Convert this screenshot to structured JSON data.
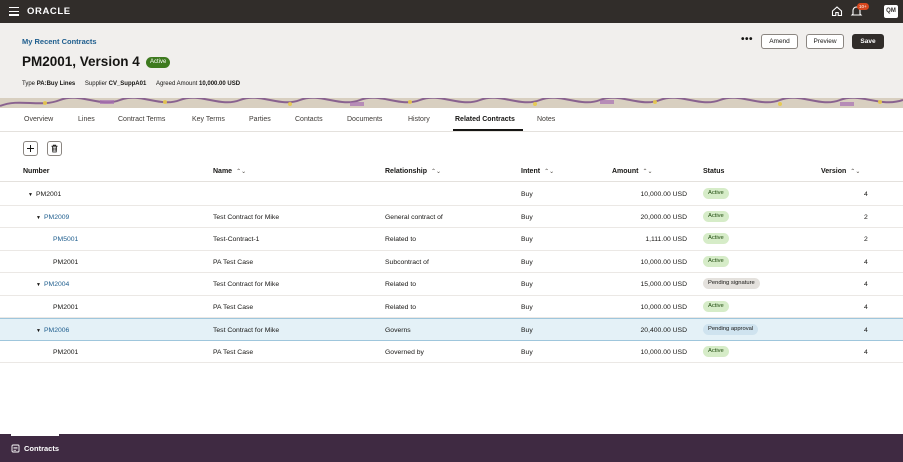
{
  "topbar": {
    "logo": "ORACLE",
    "notification_count": "10+",
    "user_initials": "QM"
  },
  "header": {
    "breadcrumb": "My Recent Contracts",
    "title": "PM2001, Version 4",
    "status": "Active",
    "meta": {
      "type_label": "Type",
      "type_value": "PA:Buy Lines",
      "supplier_label": "Supplier",
      "supplier_value": "CV_SuppA01",
      "amount_label": "Agreed Amount",
      "amount_value": "10,000.00 USD"
    },
    "actions": {
      "more": "•••",
      "amend": "Amend",
      "preview": "Preview",
      "save": "Save"
    }
  },
  "tabs": [
    {
      "label": "Overview"
    },
    {
      "label": "Lines"
    },
    {
      "label": "Contract Terms"
    },
    {
      "label": "Key Terms"
    },
    {
      "label": "Parties"
    },
    {
      "label": "Contacts"
    },
    {
      "label": "Documents"
    },
    {
      "label": "History"
    },
    {
      "label": "Related Contracts",
      "active": true
    },
    {
      "label": "Notes"
    }
  ],
  "table": {
    "columns": {
      "number": "Number",
      "name": "Name",
      "relationship": "Relationship",
      "intent": "Intent",
      "amount": "Amount",
      "status": "Status",
      "version": "Version"
    },
    "rows": [
      {
        "number": "PM2001",
        "name": "",
        "relationship": "",
        "intent": "Buy",
        "amount": "10,000.00 USD",
        "status": "Active",
        "version": "4"
      },
      {
        "number": "PM2009",
        "name": "Test Contract for Mike",
        "relationship": "General contract of",
        "intent": "Buy",
        "amount": "20,000.00 USD",
        "status": "Active",
        "version": "2"
      },
      {
        "number": "PM5001",
        "name": "Test-Contract-1",
        "relationship": "Related to",
        "intent": "Buy",
        "amount": "1,111.00 USD",
        "status": "Active",
        "version": "2"
      },
      {
        "number": "PM2001",
        "name": "PA Test Case",
        "relationship": "Subcontract of",
        "intent": "Buy",
        "amount": "10,000.00 USD",
        "status": "Active",
        "version": "4"
      },
      {
        "number": "PM2004",
        "name": "Test Contract for Mike",
        "relationship": "Related to",
        "intent": "Buy",
        "amount": "15,000.00 USD",
        "status": "Pending signature",
        "version": "4"
      },
      {
        "number": "PM2001",
        "name": "PA Test Case",
        "relationship": "Related to",
        "intent": "Buy",
        "amount": "10,000.00 USD",
        "status": "Active",
        "version": "4"
      },
      {
        "number": "PM2006",
        "name": "Test Contract for Mike",
        "relationship": "Governs",
        "intent": "Buy",
        "amount": "20,400.00 USD",
        "status": "Pending approval",
        "version": "4"
      },
      {
        "number": "PM2001",
        "name": "PA Test Case",
        "relationship": "Governed by",
        "intent": "Buy",
        "amount": "10,000.00 USD",
        "status": "Active",
        "version": "4"
      }
    ]
  },
  "footer": {
    "tab_label": "Contracts"
  },
  "colors": {
    "topbar": "#312d2a",
    "footer": "#3f2a42",
    "link": "#1f5e8e",
    "active_badge": "#3e7a1f"
  }
}
